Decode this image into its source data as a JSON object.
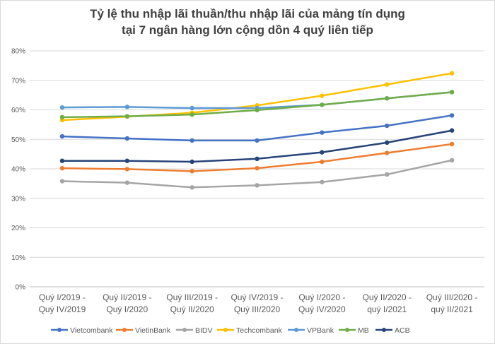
{
  "chart_data": {
    "type": "line",
    "title_lines": [
      "Tỷ lệ thu nhập lãi thuần/thu nhập lãi của mảng tín dụng",
      "tại 7 ngân hàng lớn cộng dồn 4 quý liên tiếp"
    ],
    "categories": [
      [
        "Quý I/2019 -",
        "Quý IV/2019"
      ],
      [
        "Quý II/2019 -",
        "Quý I/2020"
      ],
      [
        "Quý III/2019 -",
        "Quý II/2020"
      ],
      [
        "Quý IV/2019 -",
        "Quý III/2020"
      ],
      [
        "Quý I/2020 -",
        "Quý IV/2020"
      ],
      [
        "Quý II/2020 -",
        "quý I/2021"
      ],
      [
        "Quý III/2020 -",
        "quý II/2021"
      ]
    ],
    "ylim": [
      0,
      80
    ],
    "yticks": [
      "0%",
      "10%",
      "20%",
      "30%",
      "40%",
      "50%",
      "60%",
      "70%",
      "80%"
    ],
    "grid": true,
    "legend_position": "bottom",
    "series": [
      {
        "name": "Vietcombank",
        "color": "#4472c4",
        "values": [
          51.0,
          50.3,
          49.6,
          49.6,
          52.3,
          54.6,
          58.1
        ]
      },
      {
        "name": "VietinBank",
        "color": "#ed7d31",
        "values": [
          40.2,
          39.9,
          39.2,
          40.2,
          42.4,
          45.4,
          48.4
        ]
      },
      {
        "name": "BIDV",
        "color": "#a5a5a5",
        "values": [
          35.8,
          35.3,
          33.7,
          34.4,
          35.5,
          38.1,
          42.9
        ]
      },
      {
        "name": "Techcombank",
        "color": "#ffc000",
        "values": [
          56.5,
          57.7,
          59.0,
          61.5,
          64.8,
          68.6,
          72.4
        ]
      },
      {
        "name": "VPBank",
        "color": "#5b9bd5",
        "values": [
          60.8,
          61.0,
          60.6,
          60.6,
          61.7,
          63.9,
          66.0
        ]
      },
      {
        "name": "MB",
        "color": "#70ad47",
        "values": [
          57.5,
          57.8,
          58.4,
          59.9,
          61.7,
          63.9,
          66.0
        ]
      },
      {
        "name": "ACB",
        "color": "#264478",
        "values": [
          42.7,
          42.7,
          42.4,
          43.4,
          45.6,
          48.9,
          53.0
        ]
      }
    ]
  }
}
